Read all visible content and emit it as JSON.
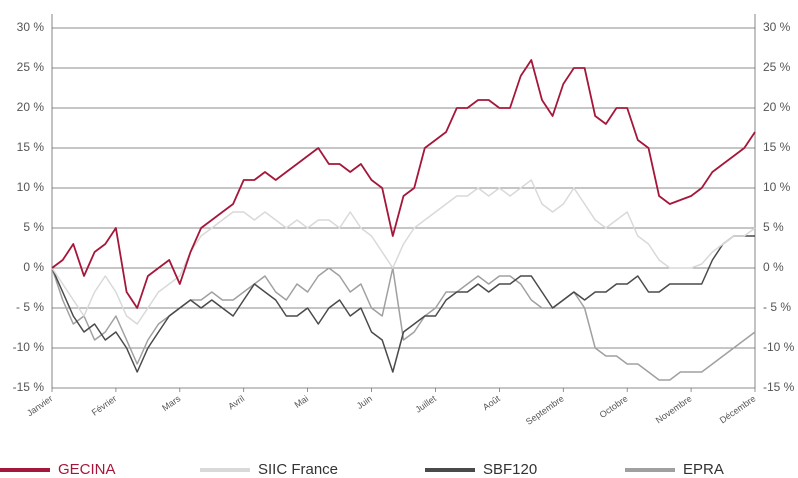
{
  "chart_data": {
    "type": "line",
    "xticks": [
      "Janvier",
      "Février",
      "Mars",
      "Avril",
      "Mai",
      "Juin",
      "Juillet",
      "Août",
      "Septembre",
      "Octobre",
      "Novembre",
      "Décembre"
    ],
    "ylim": [
      -15,
      30
    ],
    "yticks": [
      {
        "value": -15,
        "label": "-15 %"
      },
      {
        "value": -10,
        "label": "-10 %"
      },
      {
        "value": -5,
        "label": "- 5 %"
      },
      {
        "value": 0,
        "label": "0 %"
      },
      {
        "value": 5,
        "label": "5 %"
      },
      {
        "value": 10,
        "label": "10 %"
      },
      {
        "value": 15,
        "label": "15 %"
      },
      {
        "value": 20,
        "label": "20 %"
      },
      {
        "value": 25,
        "label": "25 %"
      },
      {
        "value": 30,
        "label": "30 %"
      }
    ],
    "y2lim": [
      -15,
      30
    ],
    "y2ticks": [
      {
        "value": -15,
        "label": "-15 %"
      },
      {
        "value": -10,
        "label": "-10 %"
      },
      {
        "value": -5,
        "label": "- 5 %"
      },
      {
        "value": 0,
        "label": "0 %"
      },
      {
        "value": 5,
        "label": "5 %"
      },
      {
        "value": 10,
        "label": "10 %"
      },
      {
        "value": 15,
        "label": "15 %"
      },
      {
        "value": 20,
        "label": "20 %"
      },
      {
        "value": 25,
        "label": "25 %"
      },
      {
        "value": 30,
        "label": "30 %"
      }
    ],
    "grid": true,
    "series": [
      {
        "name": "GECINA",
        "color": "#a5173a",
        "values": [
          0,
          1,
          3,
          -1,
          2,
          3,
          5,
          -3,
          -5,
          -1,
          0,
          1,
          -2,
          2,
          5,
          6,
          7,
          8,
          11,
          11,
          12,
          11,
          12,
          13,
          14,
          15,
          13,
          13,
          12,
          13,
          11,
          10,
          4,
          9,
          10,
          15,
          16,
          17,
          20,
          20,
          21,
          21,
          20,
          20,
          24,
          26,
          21,
          19,
          23,
          25,
          25,
          19,
          18,
          20,
          20,
          16,
          15,
          9,
          8,
          8.5,
          9,
          10,
          12,
          13,
          14,
          15,
          17
        ]
      },
      {
        "name": "SIIC France",
        "color": "#d9d9d9",
        "values": [
          0,
          -2,
          -4,
          -6,
          -3,
          -1,
          -3,
          -6,
          -7,
          -5,
          -3,
          -2,
          -1,
          2,
          4,
          5,
          6,
          7,
          7,
          6,
          7,
          6,
          5,
          6,
          5,
          6,
          6,
          5,
          7,
          5,
          4,
          2,
          0,
          3,
          5,
          6,
          7,
          8,
          9,
          9,
          10,
          9,
          10,
          9,
          10,
          11,
          8,
          7,
          8,
          10,
          8,
          6,
          5,
          6,
          7,
          4,
          3,
          1,
          0,
          0,
          0,
          0.5,
          2,
          3,
          4,
          4,
          5
        ]
      },
      {
        "name": "SBF120",
        "color": "#4a4a4a",
        "values": [
          0,
          -3,
          -6,
          -8,
          -7,
          -9,
          -8,
          -10,
          -13,
          -10,
          -8,
          -6,
          -5,
          -4,
          -5,
          -4,
          -5,
          -6,
          -4,
          -2,
          -3,
          -4,
          -6,
          -6,
          -5,
          -7,
          -5,
          -4,
          -6,
          -5,
          -8,
          -9,
          -13,
          -8,
          -7,
          -6,
          -6,
          -4,
          -3,
          -3,
          -2,
          -3,
          -2,
          -2,
          -1,
          -1,
          -3,
          -5,
          -4,
          -3,
          -4,
          -3,
          -3,
          -2,
          -2,
          -1,
          -3,
          -3,
          -2,
          -2,
          -2,
          -2,
          1,
          3,
          4,
          4,
          4
        ]
      },
      {
        "name": "EPRA",
        "color": "#a0a0a0",
        "values": [
          0,
          -4,
          -7,
          -6,
          -9,
          -8,
          -6,
          -9,
          -12,
          -9,
          -7,
          -6,
          -5,
          -4,
          -4,
          -3,
          -4,
          -4,
          -3,
          -2,
          -1,
          -3,
          -4,
          -2,
          -3,
          -1,
          0,
          -1,
          -3,
          -2,
          -5,
          -6,
          0,
          -9,
          -8,
          -6,
          -5,
          -3,
          -3,
          -2,
          -1,
          -2,
          -1,
          -1,
          -2,
          -4,
          -5,
          -5,
          -4,
          -3,
          -5,
          -10,
          -11,
          -11,
          -12,
          -12,
          -13,
          -14,
          -14,
          -13,
          -13,
          -13,
          -12,
          -11,
          -10,
          -9,
          -8
        ]
      }
    ]
  }
}
